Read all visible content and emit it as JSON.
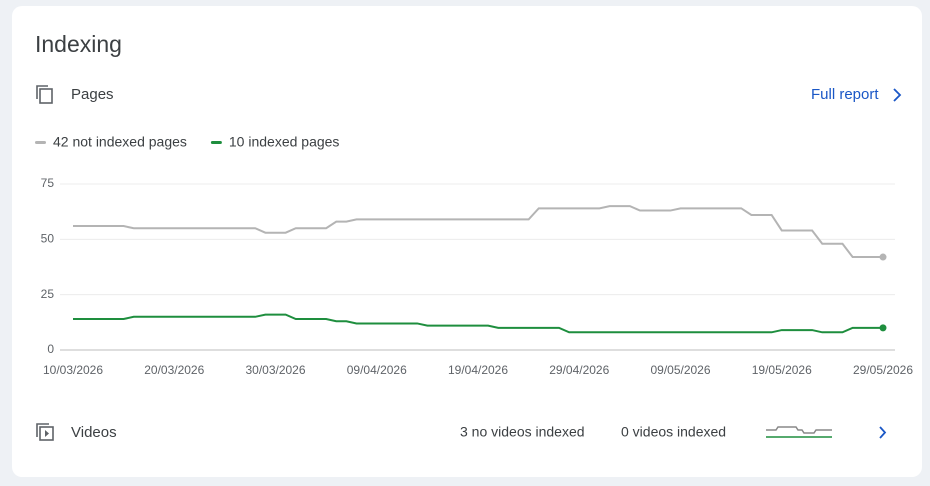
{
  "header": {
    "title": "Indexing"
  },
  "pages": {
    "label": "Pages",
    "link": "Full report"
  },
  "chart_data": {
    "type": "line",
    "categories": [
      "10/03/2026",
      null,
      null,
      null,
      null,
      null,
      null,
      null,
      null,
      null,
      "20/03/2026",
      null,
      null,
      null,
      null,
      null,
      null,
      null,
      null,
      null,
      "30/03/2026",
      null,
      null,
      null,
      null,
      null,
      null,
      null,
      null,
      null,
      "09/04/2026",
      null,
      null,
      null,
      null,
      null,
      null,
      null,
      null,
      null,
      "19/04/2026",
      null,
      null,
      null,
      null,
      null,
      null,
      null,
      null,
      null,
      "29/04/2026",
      null,
      null,
      null,
      null,
      null,
      null,
      null,
      null,
      null,
      "09/05/2026",
      null,
      null,
      null,
      null,
      null,
      null,
      null,
      null,
      null,
      "19/05/2026",
      null,
      null,
      null,
      null,
      null,
      null,
      null,
      null,
      null,
      "29/05/2026"
    ],
    "series": [
      {
        "name": "42 not indexed pages",
        "color": "#b4b4b4",
        "values": [
          56,
          56,
          56,
          56,
          56,
          56,
          55,
          55,
          55,
          55,
          55,
          55,
          55,
          55,
          55,
          55,
          55,
          55,
          55,
          53,
          53,
          53,
          55,
          55,
          55,
          55,
          58,
          58,
          59,
          59,
          59,
          59,
          59,
          59,
          59,
          59,
          59,
          59,
          59,
          59,
          59,
          59,
          59,
          59,
          59,
          59,
          64,
          64,
          64,
          64,
          64,
          64,
          64,
          65,
          65,
          65,
          63,
          63,
          63,
          63,
          64,
          64,
          64,
          64,
          64,
          64,
          64,
          61,
          61,
          61,
          54,
          54,
          54,
          54,
          48,
          48,
          48,
          42,
          42,
          42,
          42
        ]
      },
      {
        "name": "10 indexed pages",
        "color": "#1e8e3e",
        "values": [
          14,
          14,
          14,
          14,
          14,
          14,
          15,
          15,
          15,
          15,
          15,
          15,
          15,
          15,
          15,
          15,
          15,
          15,
          15,
          16,
          16,
          16,
          14,
          14,
          14,
          14,
          13,
          13,
          12,
          12,
          12,
          12,
          12,
          12,
          12,
          11,
          11,
          11,
          11,
          11,
          11,
          11,
          10,
          10,
          10,
          10,
          10,
          10,
          10,
          8,
          8,
          8,
          8,
          8,
          8,
          8,
          8,
          8,
          8,
          8,
          8,
          8,
          8,
          8,
          8,
          8,
          8,
          8,
          8,
          8,
          9,
          9,
          9,
          9,
          8,
          8,
          8,
          10,
          10,
          10,
          10
        ]
      }
    ],
    "ylim": [
      0,
      75
    ],
    "yticks": [
      0,
      25,
      50,
      75
    ],
    "grid": true
  },
  "videos": {
    "label": "Videos",
    "not_indexed": "3 no videos indexed",
    "indexed": "0 videos indexed"
  }
}
